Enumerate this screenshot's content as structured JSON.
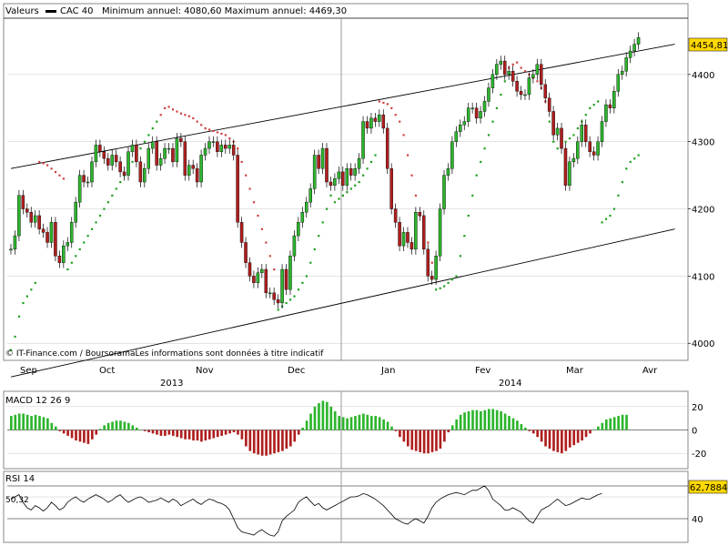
{
  "header": {
    "valeurs": "Valeurs",
    "series_name": "CAC 40",
    "min_max": "Minimum annuel: 4080,60 Maximum annuel: 4469,30",
    "source": "© IT-Finance.com / BoursoramaLes informations sont données à titre indicatif"
  },
  "colors": {
    "up": "#2db52d",
    "down": "#b01e1e",
    "sar_up": "#1f9f1f",
    "sar_down": "#d04040",
    "grid": "#c8c8c8",
    "line": "#000000"
  },
  "chart_data": [
    {
      "type": "candlestick",
      "title": "CAC 40",
      "ylim": [
        3980,
        4500
      ],
      "yticks": [
        4000,
        4100,
        4200,
        4300,
        4400
      ],
      "last_value_label": "4454,81",
      "last_value": 4454.81,
      "x_month_labels": [
        "Sep",
        "Oct",
        "Nov",
        "Dec",
        "Jan",
        "Fev",
        "Mar",
        "Avr"
      ],
      "x_year_labels": [
        "2013",
        "2014"
      ],
      "close": [
        4140,
        4160,
        4220,
        4200,
        4195,
        4180,
        4190,
        4170,
        4165,
        4150,
        4180,
        4130,
        4120,
        4145,
        4150,
        4180,
        4210,
        4250,
        4240,
        4240,
        4270,
        4295,
        4285,
        4275,
        4265,
        4280,
        4270,
        4255,
        4250,
        4285,
        4295,
        4270,
        4240,
        4260,
        4290,
        4300,
        4265,
        4275,
        4290,
        4290,
        4270,
        4305,
        4300,
        4250,
        4265,
        4260,
        4240,
        4280,
        4290,
        4300,
        4300,
        4285,
        4295,
        4290,
        4295,
        4280,
        4180,
        4150,
        4120,
        4100,
        4090,
        4105,
        4110,
        4075,
        4075,
        4065,
        4060,
        4110,
        4080,
        4130,
        4160,
        4180,
        4195,
        4210,
        4230,
        4280,
        4260,
        4290,
        4240,
        4235,
        4245,
        4255,
        4235,
        4260,
        4250,
        4260,
        4275,
        4330,
        4320,
        4335,
        4330,
        4340,
        4320,
        4260,
        4200,
        4180,
        4145,
        4165,
        4150,
        4140,
        4195,
        4190,
        4140,
        4100,
        4095,
        4130,
        4200,
        4250,
        4260,
        4300,
        4315,
        4325,
        4330,
        4350,
        4350,
        4335,
        4345,
        4360,
        4380,
        4400,
        4415,
        4420,
        4400,
        4405,
        4390,
        4375,
        4370,
        4370,
        4395,
        4400,
        4415,
        4385,
        4365,
        4345,
        4310,
        4320,
        4290,
        4235,
        4270,
        4275,
        4300,
        4325,
        4300,
        4285,
        4280,
        4300,
        4330,
        4355,
        4350,
        4375,
        4400,
        4405,
        4425,
        4435,
        4445,
        4455
      ],
      "open": [
        4140,
        4140,
        4160,
        4220,
        4200,
        4195,
        4180,
        4190,
        4170,
        4165,
        4150,
        4180,
        4130,
        4120,
        4145,
        4150,
        4180,
        4210,
        4250,
        4240,
        4240,
        4270,
        4295,
        4285,
        4275,
        4265,
        4280,
        4270,
        4255,
        4250,
        4285,
        4295,
        4270,
        4240,
        4260,
        4290,
        4300,
        4265,
        4275,
        4290,
        4290,
        4270,
        4305,
        4300,
        4250,
        4265,
        4260,
        4240,
        4280,
        4290,
        4300,
        4300,
        4285,
        4295,
        4290,
        4295,
        4280,
        4180,
        4150,
        4120,
        4100,
        4090,
        4105,
        4110,
        4075,
        4075,
        4065,
        4060,
        4110,
        4080,
        4130,
        4160,
        4180,
        4195,
        4210,
        4230,
        4280,
        4260,
        4290,
        4240,
        4235,
        4245,
        4255,
        4235,
        4260,
        4250,
        4260,
        4275,
        4330,
        4320,
        4335,
        4330,
        4340,
        4320,
        4260,
        4200,
        4180,
        4145,
        4165,
        4150,
        4140,
        4195,
        4190,
        4140,
        4100,
        4095,
        4130,
        4200,
        4250,
        4260,
        4300,
        4315,
        4325,
        4330,
        4350,
        4350,
        4335,
        4345,
        4360,
        4380,
        4400,
        4415,
        4420,
        4400,
        4405,
        4390,
        4375,
        4370,
        4370,
        4395,
        4400,
        4415,
        4385,
        4365,
        4345,
        4310,
        4320,
        4290,
        4235,
        4270,
        4275,
        4300,
        4325,
        4300,
        4285,
        4280,
        4300,
        4330,
        4355,
        4350,
        4375,
        4400,
        4405,
        4425,
        4435,
        4445
      ],
      "sar": [
        3990,
        4010,
        4040,
        4060,
        4070,
        4080,
        4090,
        4270,
        4268,
        4265,
        4260,
        4255,
        4250,
        4245,
        4110,
        4120,
        4130,
        4140,
        4150,
        4160,
        4170,
        4180,
        4190,
        4200,
        4210,
        4220,
        4230,
        4240,
        4250,
        4260,
        4270,
        4280,
        4290,
        4300,
        4310,
        4320,
        4330,
        4340,
        4350,
        4352,
        4348,
        4345,
        4342,
        4340,
        4338,
        4335,
        4330,
        4325,
        4320,
        4318,
        4316,
        4314,
        4312,
        4310,
        4305,
        4300,
        4290,
        4270,
        4250,
        4230,
        4210,
        4190,
        4170,
        4150,
        4130,
        4110,
        4050,
        4055,
        4060,
        4065,
        4070,
        4080,
        4090,
        4100,
        4120,
        4140,
        4160,
        4180,
        4200,
        4220,
        4210,
        4215,
        4220,
        4225,
        4230,
        4235,
        4240,
        4250,
        4260,
        4270,
        4280,
        4360,
        4358,
        4356,
        4350,
        4340,
        4330,
        4310,
        4280,
        4250,
        4220,
        4190,
        4170,
        4150,
        4120,
        4080,
        4082,
        4085,
        4090,
        4095,
        4100,
        4130,
        4160,
        4190,
        4220,
        4250,
        4270,
        4290,
        4310,
        4330,
        4350,
        4370,
        4390,
        4410,
        4415,
        4418,
        4410,
        4405,
        4400,
        4395,
        4390,
        4380,
        4360,
        4330,
        4300,
        4290,
        4295,
        4300,
        4305,
        4310,
        4320,
        4330,
        4340,
        4350,
        4355,
        4360,
        4180,
        4185,
        4190,
        4200,
        4220,
        4240,
        4260,
        4270,
        4275,
        4280
      ],
      "sar_direction": [
        "up",
        "up",
        "up",
        "up",
        "up",
        "up",
        "up",
        "down",
        "down",
        "down",
        "down",
        "down",
        "down",
        "down",
        "up",
        "up",
        "up",
        "up",
        "up",
        "up",
        "up",
        "up",
        "up",
        "up",
        "up",
        "up",
        "up",
        "up",
        "up",
        "up",
        "up",
        "up",
        "up",
        "up",
        "up",
        "up",
        "up",
        "down",
        "down",
        "down",
        "down",
        "down",
        "down",
        "down",
        "down",
        "down",
        "down",
        "down",
        "down",
        "down",
        "down",
        "down",
        "down",
        "down",
        "down",
        "down",
        "down",
        "down",
        "down",
        "down",
        "down",
        "down",
        "down",
        "down",
        "down",
        "down",
        "up",
        "up",
        "up",
        "up",
        "up",
        "up",
        "up",
        "up",
        "up",
        "up",
        "up",
        "up",
        "up",
        "up",
        "up",
        "up",
        "up",
        "up",
        "up",
        "up",
        "up",
        "up",
        "up",
        "up",
        "up",
        "down",
        "down",
        "down",
        "down",
        "down",
        "down",
        "down",
        "down",
        "down",
        "down",
        "down",
        "down",
        "down",
        "down",
        "up",
        "up",
        "up",
        "up",
        "up",
        "up",
        "up",
        "up",
        "up",
        "up",
        "up",
        "up",
        "up",
        "up",
        "up",
        "up",
        "up",
        "up",
        "down",
        "down",
        "down",
        "down",
        "down",
        "down",
        "down",
        "down",
        "down",
        "down",
        "up",
        "up",
        "up",
        "up",
        "up",
        "up",
        "up",
        "up",
        "up",
        "up",
        "up",
        "up",
        "up",
        "up",
        "up",
        "up",
        "up",
        "up",
        "up",
        "up",
        "up",
        "up",
        "up"
      ],
      "channel_upper": [
        [
          0,
          4260
        ],
        [
          155,
          4445
        ]
      ],
      "channel_lower": [
        [
          0,
          3950
        ],
        [
          155,
          4170
        ]
      ]
    },
    {
      "type": "bar",
      "title": "MACD 12 26 9",
      "ylim": [
        -30,
        30
      ],
      "yticks": [
        20,
        0,
        -20
      ],
      "values": [
        12,
        13,
        14,
        14,
        13,
        12,
        13,
        12,
        11,
        10,
        6,
        3,
        -1,
        -3,
        -5,
        -7,
        -9,
        -10,
        -11,
        -12,
        -8,
        -4,
        1,
        4,
        6,
        7,
        8,
        8,
        7,
        6,
        4,
        2,
        0,
        -1,
        -2,
        -3,
        -4,
        -5,
        -5,
        -4,
        -5,
        -6,
        -7,
        -8,
        -8,
        -9,
        -9,
        -10,
        -9,
        -8,
        -7,
        -6,
        -5,
        -4,
        -3,
        -2,
        -4,
        -8,
        -14,
        -18,
        -20,
        -21,
        -22,
        -22,
        -21,
        -20,
        -19,
        -18,
        -16,
        -14,
        -10,
        -4,
        2,
        8,
        14,
        20,
        23,
        25,
        24,
        20,
        16,
        12,
        11,
        10,
        11,
        12,
        13,
        14,
        13,
        12,
        12,
        11,
        9,
        7,
        3,
        -1,
        -6,
        -10,
        -14,
        -17,
        -18,
        -19,
        -20,
        -20,
        -19,
        -18,
        -16,
        -10,
        -2,
        4,
        9,
        13,
        15,
        16,
        17,
        17,
        16,
        17,
        18,
        18,
        17,
        16,
        14,
        12,
        10,
        8,
        5,
        2,
        -1,
        -3,
        -6,
        -10,
        -14,
        -16,
        -18,
        -19,
        -20,
        -18,
        -15,
        -13,
        -11,
        -9,
        -6,
        -3,
        0,
        3,
        6,
        9,
        10,
        11,
        12,
        13,
        13
      ],
      "last_value_label": "",
      "last_value": null
    },
    {
      "type": "line",
      "title": "RSI 14",
      "ylim": [
        20,
        80
      ],
      "yticks": [
        40
      ],
      "left_label": "50,32",
      "last_value_label": "62,7884",
      "last_value": 62.7884,
      "values": [
        58,
        60,
        62,
        55,
        50,
        48,
        52,
        50,
        47,
        50,
        55,
        52,
        48,
        50,
        55,
        58,
        60,
        57,
        55,
        58,
        60,
        62,
        60,
        58,
        55,
        57,
        60,
        62,
        58,
        55,
        57,
        59,
        60,
        58,
        55,
        56,
        57,
        59,
        57,
        55,
        58,
        56,
        52,
        54,
        56,
        58,
        55,
        53,
        56,
        58,
        57,
        55,
        54,
        52,
        48,
        40,
        32,
        28,
        27,
        26,
        25,
        28,
        30,
        27,
        25,
        24,
        28,
        38,
        42,
        45,
        48,
        55,
        58,
        60,
        56,
        52,
        54,
        50,
        48,
        50,
        52,
        54,
        56,
        58,
        60,
        60,
        61,
        63,
        62,
        60,
        58,
        55,
        52,
        48,
        44,
        40,
        38,
        36,
        35,
        38,
        40,
        38,
        36,
        42,
        50,
        55,
        58,
        60,
        62,
        63,
        64,
        63,
        62,
        64,
        66,
        66,
        68,
        70,
        66,
        58,
        55,
        52,
        48,
        48,
        50,
        48,
        46,
        42,
        38,
        36,
        42,
        48,
        50,
        52,
        55,
        58,
        55,
        52,
        53,
        55,
        57,
        59,
        58,
        58,
        60,
        62,
        63
      ]
    }
  ]
}
